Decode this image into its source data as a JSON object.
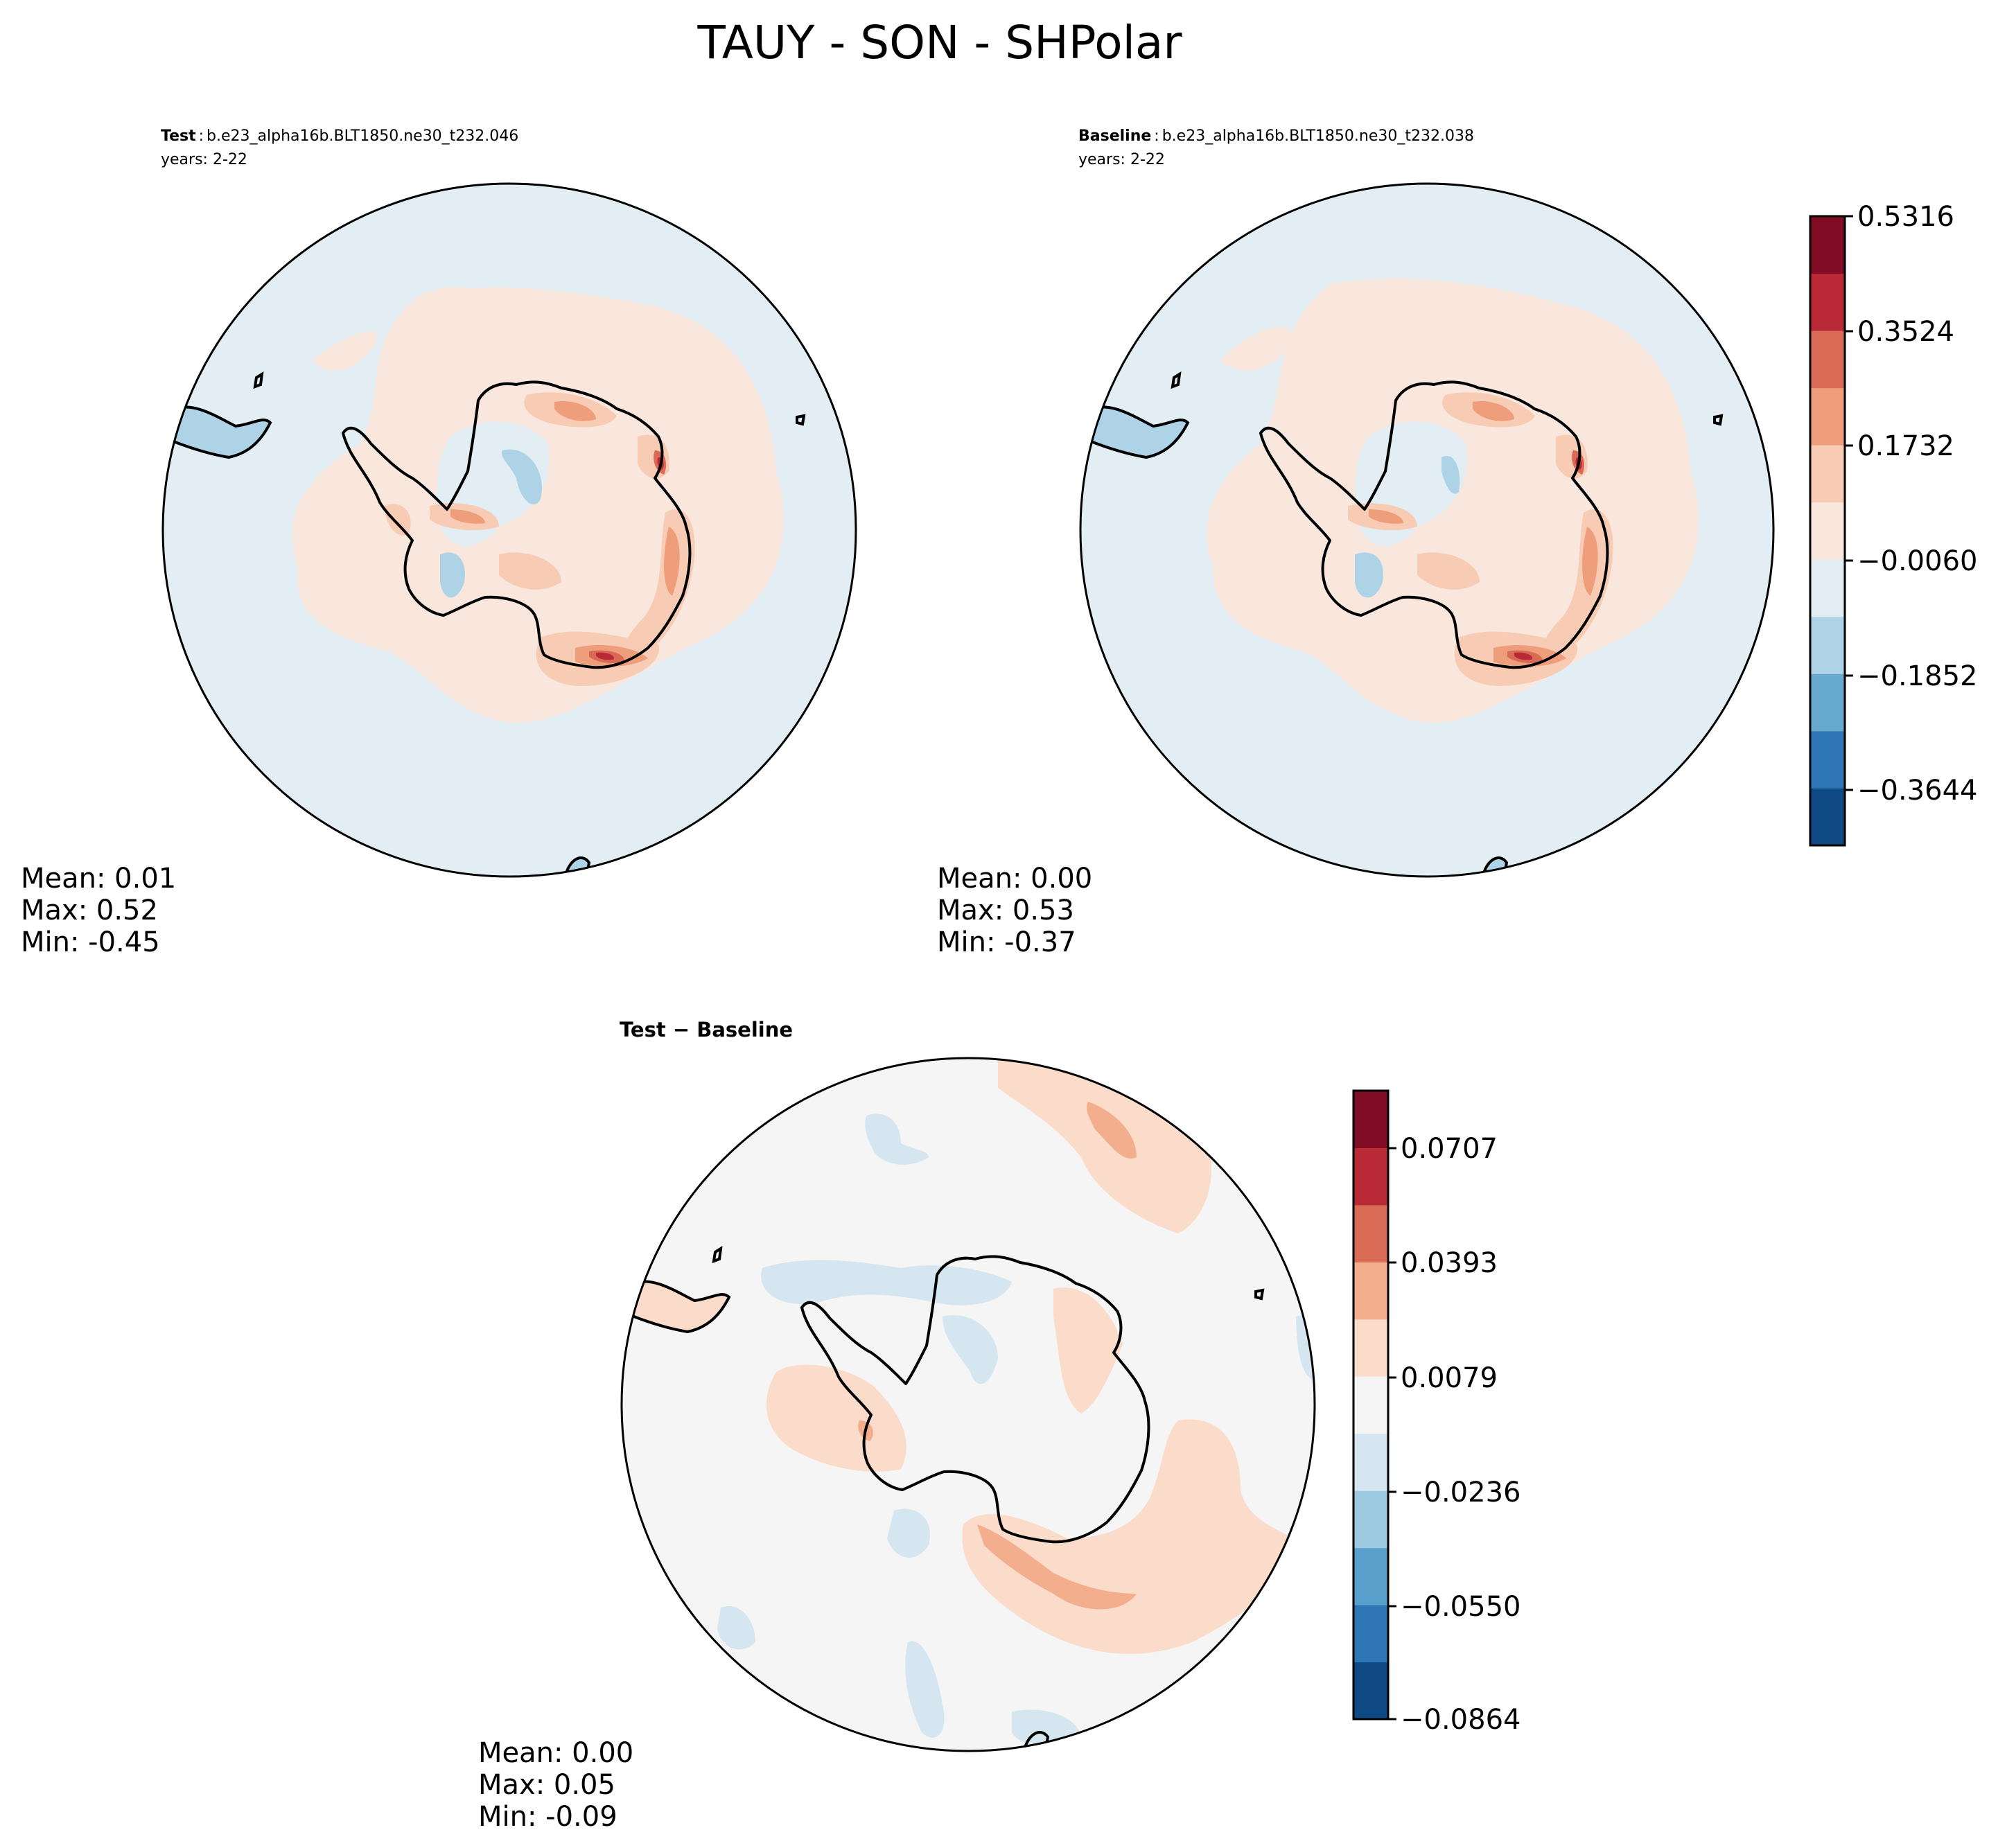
{
  "figure": {
    "title": "TAUY - SON - SHPolar"
  },
  "chart_data": [
    {
      "type": "heatmap",
      "projection": "south-polar-stereographic",
      "title_bold": "Test",
      "title_case": "b.e23_alpha16b.BLT1850.ne30_t232.046",
      "years_label": "years: 2-22",
      "stats": {
        "mean_label": "Mean:  0.01",
        "max_label": "Max:  0.52",
        "min_label": "Min: -0.45"
      },
      "background_color": "#e2edf4",
      "features": [
        {
          "kind": "ring",
          "level": 1,
          "color": "#f9e7de",
          "lon": 0,
          "dist": 0.52,
          "w": 0.6
        },
        {
          "kind": "blob",
          "level": 2,
          "lon": 90,
          "dist": 0.46,
          "rx": 0.07,
          "ry": 0.035,
          "rot": 45
        },
        {
          "kind": "blob",
          "level": 3,
          "lon": 80,
          "dist": 0.47,
          "rx": 0.04,
          "ry": 0.02,
          "rot": 45
        },
        {
          "kind": "blob",
          "level": 2,
          "lon": 150,
          "dist": 0.44,
          "rx": 0.09,
          "ry": 0.04,
          "rot": 15
        },
        {
          "kind": "blob",
          "level": 3,
          "lon": 150,
          "dist": 0.45,
          "rx": 0.05,
          "ry": 0.02,
          "rot": 15
        },
        {
          "kind": "blob",
          "level": 4,
          "lon": 160,
          "dist": 0.46,
          "rx": 0.02,
          "ry": 0.012,
          "rot": 15
        }
      ]
    },
    {
      "type": "heatmap",
      "projection": "south-polar-stereographic",
      "title_bold": "Baseline",
      "title_case": "b.e23_alpha16b.BLT1850.ne30_t232.038",
      "years_label": "years: 2-22",
      "stats": {
        "mean_label": "Mean:  0.00",
        "max_label": "Max:  0.53",
        "min_label": "Min: -0.37"
      },
      "colorbar": {
        "ticks": [
          "0.5316",
          "0.3524",
          "0.1732",
          "−0.0060",
          "−0.1852",
          "−0.3644"
        ],
        "colors": [
          "#0f4a84",
          "#2f76b6",
          "#67a9cf",
          "#afd3e6",
          "#e2edf4",
          "#f9e7de",
          "#f8ccb4",
          "#ef9e7c",
          "#d96a55",
          "#b92a36",
          "#800c25"
        ]
      }
    },
    {
      "type": "heatmap",
      "projection": "south-polar-stereographic",
      "title": "Test − Baseline",
      "stats": {
        "mean_label": "Mean:  0.00",
        "max_label": "Max:  0.05",
        "min_label": "Min: -0.09"
      },
      "colorbar": {
        "ticks": [
          "0.0707",
          "0.0393",
          "0.0079",
          "−0.0236",
          "−0.0550",
          "−0.0864"
        ],
        "colors": [
          "#0f4a84",
          "#2f76b6",
          "#5aa0cd",
          "#9fcbe2",
          "#d6e6f1",
          "#f5f5f5",
          "#fbdcca",
          "#f3ae8e",
          "#d96a55",
          "#b92a36",
          "#800c25"
        ]
      }
    }
  ]
}
